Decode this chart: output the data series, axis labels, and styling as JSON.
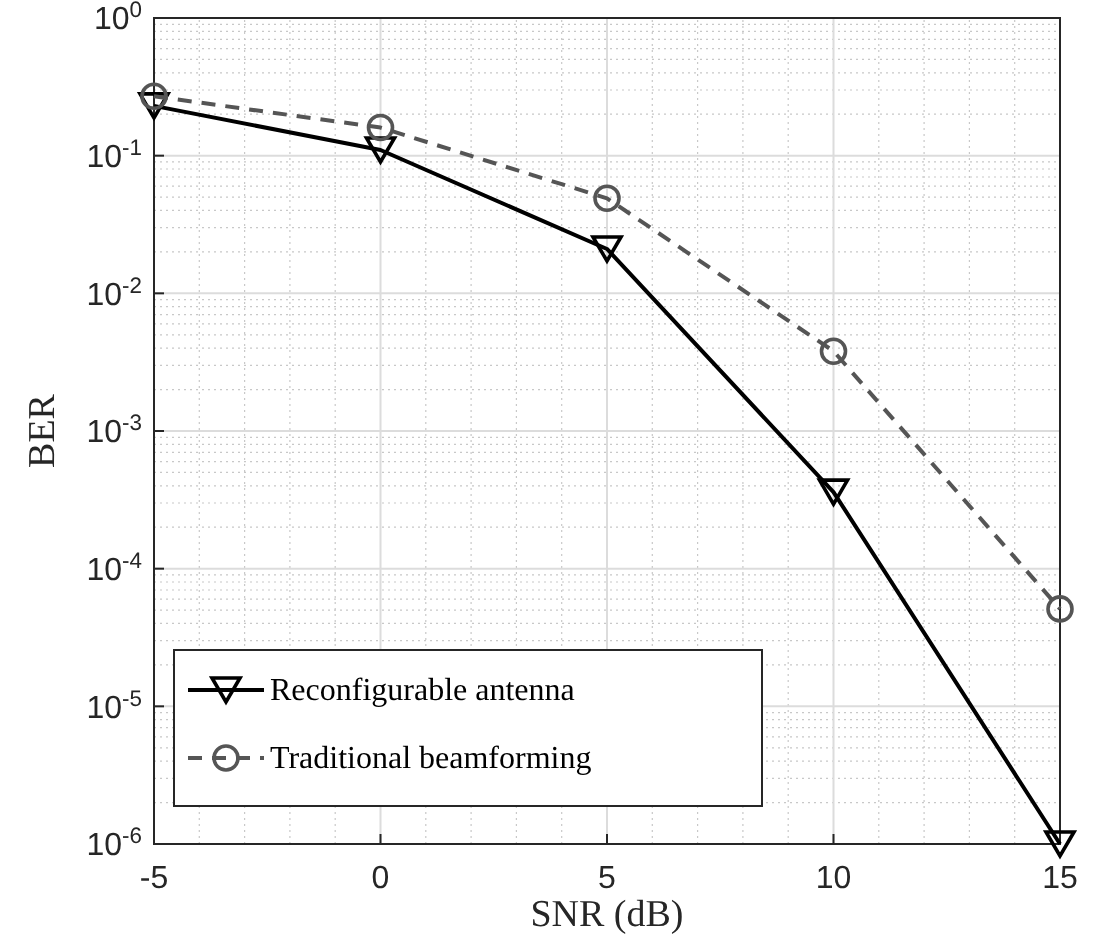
{
  "chart_data": {
    "type": "line",
    "xlabel": "SNR (dB)",
    "ylabel": "BER",
    "x": [
      -5,
      0,
      5,
      10,
      15
    ],
    "series": [
      {
        "name": "Reconfigurable antenna",
        "color": "#000000",
        "values": [
          0.23,
          0.11,
          0.021,
          0.00036,
          1e-06
        ],
        "marker": "triangle",
        "line_style": "solid"
      },
      {
        "name": "Traditional beamforming",
        "color": "#555555",
        "values": [
          0.27,
          0.16,
          0.049,
          0.0038,
          5.1e-05
        ],
        "marker": "circle",
        "line_style": "dashed"
      }
    ],
    "log": "y",
    "xlim": [
      -5,
      15
    ],
    "xticks": [
      -5,
      0,
      5,
      10,
      15
    ],
    "ylim": [
      1e-06,
      1
    ],
    "yticks": [
      {
        "value": 1e-06,
        "label": "10$^{-6}$"
      },
      {
        "value": 1e-05,
        "label": "10$^{-5}$"
      },
      {
        "value": 0.0001,
        "label": "10$^{-4}$"
      },
      {
        "value": 0.001,
        "label": "10$^{-3}$"
      },
      {
        "value": 0.01,
        "label": "10$^{-2}$"
      },
      {
        "value": 0.1,
        "label": "10$^{-1}$"
      },
      {
        "value": 1,
        "label": "10$^{0}$"
      }
    ],
    "grid": true,
    "legend": "bottom left"
  }
}
